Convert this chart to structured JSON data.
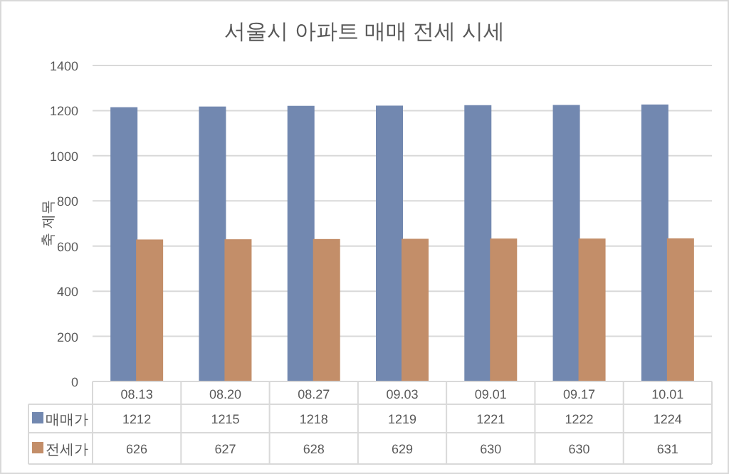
{
  "chart_data": {
    "type": "bar",
    "title": "서울시 아파트 매매 전세 시세",
    "ylabel": "축 제목",
    "categories": [
      "08.13",
      "08.20",
      "08.27",
      "09.03",
      "09.01",
      "09.17",
      "10.01"
    ],
    "series": [
      {
        "name": "매매가",
        "color": "#8faadc",
        "values": [
          1212,
          1215,
          1218,
          1219,
          1221,
          1222,
          1224
        ]
      },
      {
        "name": "전세가",
        "color": "#f4b183",
        "values": [
          626,
          627,
          628,
          629,
          630,
          630,
          631
        ]
      }
    ],
    "ylim": [
      0,
      1400
    ],
    "yticks": [
      0,
      200,
      400,
      600,
      800,
      1000,
      1200,
      1400
    ],
    "grid": "y",
    "legend": "bottom",
    "data_labels": true
  }
}
